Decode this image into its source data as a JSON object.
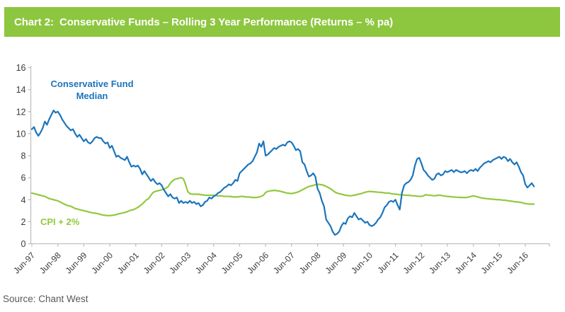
{
  "header": {
    "title": "Chart 2:  Conservative Funds – Rolling 3 Year Performance (Returns – % pa)",
    "bg_color": "#8DC63F",
    "text_color": "#FFFFFF"
  },
  "source": {
    "label": "Source: Chant West"
  },
  "chart_data": {
    "type": "line",
    "title": "Conservative Funds – Rolling 3 Year Performance (Returns – % pa)",
    "xlabel": "",
    "ylabel": "",
    "ylim": [
      0,
      16
    ],
    "y_ticks": [
      0,
      2,
      4,
      6,
      8,
      10,
      12,
      14,
      16
    ],
    "grid": false,
    "legend_position": "inline-annotations",
    "axis_color": "#BFBFBF",
    "tick_label_color": "#3A3A3A",
    "x_tick_labels": [
      "Jun-97",
      "Jun-98",
      "Jun-99",
      "Jun-00",
      "Jun-01",
      "Jun-02",
      "Jun-03",
      "Jun-04",
      "Jun-05",
      "Jun-06",
      "Jun-07",
      "Jun-08",
      "Jun-09",
      "Jun-10",
      "Jun-11",
      "Jun-12",
      "Jun-13",
      "Jun-14",
      "Jun-15",
      "Jun-16"
    ],
    "x_unit": "months since Jun-97, monthly data ending Oct-16",
    "series": [
      {
        "name": "Conservative Fund Median",
        "color": "#1B75BC",
        "values": [
          10.4,
          10.6,
          10.1,
          9.8,
          10.1,
          10.5,
          11.1,
          10.8,
          11.3,
          11.7,
          12.1,
          11.9,
          12.0,
          11.7,
          11.3,
          11.0,
          10.7,
          10.5,
          10.3,
          10.4,
          10.0,
          9.7,
          9.9,
          9.6,
          9.3,
          9.5,
          9.2,
          9.1,
          9.3,
          9.6,
          9.7,
          9.6,
          9.6,
          9.3,
          9.1,
          9.2,
          8.7,
          8.9,
          8.4,
          7.9,
          8.0,
          7.8,
          7.7,
          7.6,
          7.9,
          7.4,
          7.0,
          7.1,
          7.0,
          7.1,
          6.8,
          6.3,
          6.6,
          6.3,
          6.0,
          5.7,
          5.9,
          5.6,
          5.4,
          5.5,
          5.3,
          4.9,
          4.6,
          4.3,
          4.5,
          4.2,
          4.1,
          4.2,
          3.7,
          3.9,
          3.7,
          3.8,
          3.7,
          3.9,
          3.7,
          3.8,
          3.6,
          3.7,
          3.4,
          3.5,
          3.8,
          3.9,
          4.2,
          4.1,
          4.3,
          4.4,
          4.6,
          4.7,
          4.9,
          5.1,
          5.2,
          5.4,
          5.3,
          5.5,
          5.8,
          5.7,
          6.4,
          6.6,
          6.8,
          7.0,
          7.2,
          7.3,
          7.5,
          7.9,
          8.3,
          9.1,
          8.8,
          9.3,
          8.0,
          8.1,
          8.3,
          8.5,
          8.7,
          8.6,
          8.8,
          8.9,
          9.0,
          8.9,
          9.2,
          9.3,
          9.2,
          8.9,
          8.5,
          8.6,
          8.4,
          7.4,
          7.2,
          6.6,
          6.1,
          6.2,
          6.4,
          6.1,
          5.0,
          4.6,
          3.9,
          3.4,
          2.2,
          1.9,
          1.6,
          1.1,
          0.8,
          0.9,
          1.1,
          1.6,
          1.9,
          1.8,
          2.3,
          2.5,
          2.4,
          2.8,
          2.5,
          2.2,
          2.3,
          2.1,
          1.9,
          2.0,
          1.7,
          1.6,
          1.7,
          1.9,
          2.2,
          2.4,
          2.8,
          3.3,
          3.5,
          3.8,
          3.9,
          3.8,
          4.0,
          3.5,
          3.1,
          4.6,
          5.3,
          5.5,
          5.6,
          5.8,
          6.2,
          7.1,
          7.7,
          7.8,
          7.3,
          6.7,
          6.5,
          6.2,
          6.0,
          5.8,
          5.9,
          6.3,
          6.4,
          6.2,
          6.3,
          6.6,
          6.5,
          6.6,
          6.7,
          6.5,
          6.7,
          6.6,
          6.5,
          6.5,
          6.6,
          6.4,
          6.6,
          6.7,
          6.6,
          6.8,
          6.6,
          6.9,
          7.1,
          7.3,
          7.4,
          7.5,
          7.4,
          7.6,
          7.7,
          7.8,
          7.9,
          7.7,
          7.9,
          7.8,
          7.5,
          7.7,
          7.4,
          7.2,
          7.4,
          7.0,
          6.5,
          6.2,
          5.4,
          5.1,
          5.3,
          5.5,
          5.2
        ]
      },
      {
        "name": "CPI + 2%",
        "color": "#92C83E",
        "values": [
          4.6,
          4.55,
          4.5,
          4.45,
          4.4,
          4.35,
          4.3,
          4.2,
          4.1,
          4.05,
          4.0,
          3.95,
          3.9,
          3.8,
          3.7,
          3.6,
          3.5,
          3.45,
          3.4,
          3.3,
          3.2,
          3.15,
          3.1,
          3.05,
          3.0,
          2.95,
          2.9,
          2.85,
          2.8,
          2.78,
          2.75,
          2.7,
          2.65,
          2.6,
          2.58,
          2.56,
          2.55,
          2.58,
          2.6,
          2.65,
          2.7,
          2.75,
          2.8,
          2.85,
          2.9,
          3.0,
          3.05,
          3.1,
          3.2,
          3.3,
          3.45,
          3.6,
          3.8,
          4.0,
          4.1,
          4.4,
          4.65,
          4.75,
          4.8,
          4.85,
          4.9,
          4.95,
          5.05,
          5.2,
          5.5,
          5.7,
          5.85,
          5.9,
          5.95,
          6.0,
          5.9,
          5.4,
          4.75,
          4.55,
          4.5,
          4.5,
          4.5,
          4.5,
          4.45,
          4.45,
          4.4,
          4.4,
          4.4,
          4.4,
          4.4,
          4.38,
          4.35,
          4.35,
          4.33,
          4.3,
          4.3,
          4.3,
          4.28,
          4.25,
          4.25,
          4.25,
          4.28,
          4.3,
          4.28,
          4.25,
          4.25,
          4.22,
          4.2,
          4.2,
          4.2,
          4.25,
          4.3,
          4.4,
          4.65,
          4.75,
          4.8,
          4.82,
          4.85,
          4.82,
          4.8,
          4.75,
          4.7,
          4.65,
          4.6,
          4.58,
          4.55,
          4.6,
          4.65,
          4.7,
          4.8,
          4.9,
          5.0,
          5.1,
          5.2,
          5.25,
          5.3,
          5.35,
          5.4,
          5.38,
          5.35,
          5.3,
          5.2,
          5.1,
          5.0,
          4.85,
          4.7,
          4.6,
          4.55,
          4.5,
          4.45,
          4.4,
          4.38,
          4.35,
          4.38,
          4.4,
          4.45,
          4.5,
          4.55,
          4.6,
          4.68,
          4.72,
          4.75,
          4.73,
          4.72,
          4.7,
          4.68,
          4.67,
          4.65,
          4.62,
          4.6,
          4.6,
          4.55,
          4.52,
          4.5,
          4.48,
          4.45,
          4.45,
          4.42,
          4.4,
          4.4,
          4.38,
          4.35,
          4.35,
          4.32,
          4.3,
          4.3,
          4.35,
          4.45,
          4.42,
          4.4,
          4.38,
          4.35,
          4.38,
          4.4,
          4.4,
          4.35,
          4.32,
          4.3,
          4.28,
          4.26,
          4.25,
          4.23,
          4.22,
          4.2,
          4.2,
          4.2,
          4.2,
          4.25,
          4.3,
          4.35,
          4.3,
          4.25,
          4.2,
          4.15,
          4.12,
          4.1,
          4.08,
          4.05,
          4.05,
          4.02,
          4.0,
          4.0,
          3.98,
          3.95,
          3.95,
          3.9,
          3.88,
          3.85,
          3.82,
          3.8,
          3.78,
          3.75,
          3.7,
          3.65,
          3.62,
          3.6,
          3.6,
          3.6
        ]
      }
    ]
  }
}
